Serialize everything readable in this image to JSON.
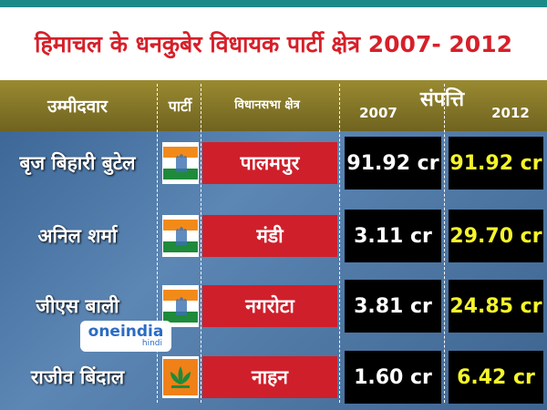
{
  "title": "हिमाचल के धनकुबेर विधायक पार्टी क्षेत्र 2007- 2012",
  "header": {
    "candidate": "उम्मीदवार",
    "party": "पार्टी",
    "constituency": "विधानसभा क्षेत्र",
    "year_2007": "2007",
    "assets": "संपत्ति",
    "year_2012": "2012"
  },
  "table": {
    "rows": [
      [
        "बृज बिहारी बुटेल",
        "पालमपुर",
        "91.92 cr",
        "91.92 cr"
      ],
      [
        "अनिल शर्मा",
        "मंडी",
        "3.11 cr",
        "29.70 cr"
      ],
      [
        "जीएस बाली",
        "नगरोटा",
        "3.81 cr",
        "24.85 cr"
      ],
      [
        "राजीव बिंदाल",
        "नाहन",
        "1.60 cr",
        "6.42 cr"
      ]
    ]
  },
  "watermark": {
    "brand": "oneindia",
    "sub": "hindi"
  }
}
